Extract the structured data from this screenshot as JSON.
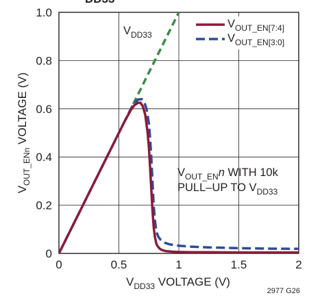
{
  "chart_data": {
    "type": "line",
    "title_fragment": "DD33",
    "xlabel": {
      "main": "V",
      "sub": "DD33",
      "rest": " VOLTAGE (V)"
    },
    "ylabel": {
      "main": "V",
      "sub": "OUT_ENn",
      "rest": " VOLTAGE (V)"
    },
    "xlim": [
      0,
      2
    ],
    "ylim": [
      0,
      1.0
    ],
    "x_ticks": [
      0,
      0.5,
      1,
      1.5,
      2
    ],
    "x_tick_labels": [
      "0",
      "0.5",
      "1",
      "1.5",
      "2"
    ],
    "y_ticks": [
      0,
      0.2,
      0.4,
      0.6,
      0.8,
      1.0
    ],
    "y_tick_labels": [
      "0",
      "0.2",
      "0.4",
      "0.6",
      "0.8",
      "1.0"
    ],
    "grid": true,
    "legend_position": "top-right",
    "figure_id": "2977 G26",
    "annotations": {
      "vdd33_line": {
        "main": "V",
        "sub": "DD33"
      },
      "note_line1": {
        "main": "V",
        "sub": "OUT_EN",
        "italic": "n",
        "rest": " WITH 10k"
      },
      "note_line2": {
        "main": "PULL–UP TO V",
        "sub": "DD33"
      }
    },
    "series": [
      {
        "name": "VOUT_EN[7:4]",
        "legend": {
          "main": "V",
          "sub": "OUT_EN[7:4]"
        },
        "color": "#8b1a3a",
        "style": "solid",
        "x": [
          0,
          0.1,
          0.2,
          0.3,
          0.4,
          0.5,
          0.55,
          0.6,
          0.63,
          0.66,
          0.68,
          0.7,
          0.72,
          0.74,
          0.75,
          0.76,
          0.77,
          0.78,
          0.79,
          0.8,
          0.81,
          0.82,
          0.84,
          0.86,
          0.88,
          0.9,
          0.95,
          1.0,
          1.1,
          1.25,
          1.5,
          1.75,
          2.0
        ],
        "y": [
          0,
          0.1,
          0.2,
          0.3,
          0.4,
          0.5,
          0.55,
          0.595,
          0.615,
          0.625,
          0.625,
          0.61,
          0.575,
          0.5,
          0.44,
          0.36,
          0.27,
          0.18,
          0.11,
          0.07,
          0.045,
          0.032,
          0.02,
          0.014,
          0.011,
          0.009,
          0.007,
          0.006,
          0.005,
          0.005,
          0.004,
          0.004,
          0.004
        ]
      },
      {
        "name": "VOUT_EN[3:0]",
        "legend": {
          "main": "V",
          "sub": "OUT_EN[3:0]"
        },
        "color": "#2e4a9a",
        "style": "dashed",
        "x": [
          0,
          0.1,
          0.2,
          0.3,
          0.4,
          0.5,
          0.55,
          0.6,
          0.63,
          0.66,
          0.69,
          0.71,
          0.73,
          0.75,
          0.76,
          0.77,
          0.78,
          0.79,
          0.8,
          0.81,
          0.82,
          0.83,
          0.85,
          0.88,
          0.92,
          0.97,
          1.0,
          1.1,
          1.25,
          1.5,
          1.75,
          2.0
        ],
        "y": [
          0,
          0.1,
          0.2,
          0.3,
          0.4,
          0.5,
          0.55,
          0.6,
          0.625,
          0.638,
          0.64,
          0.63,
          0.6,
          0.54,
          0.48,
          0.4,
          0.3,
          0.2,
          0.14,
          0.1,
          0.08,
          0.068,
          0.055,
          0.045,
          0.038,
          0.034,
          0.032,
          0.028,
          0.025,
          0.022,
          0.02,
          0.019
        ]
      },
      {
        "name": "VDD33",
        "color": "#3d8b49",
        "style": "dashed",
        "x": [
          0.62,
          1.0
        ],
        "y": [
          0.62,
          1.0
        ]
      }
    ]
  }
}
